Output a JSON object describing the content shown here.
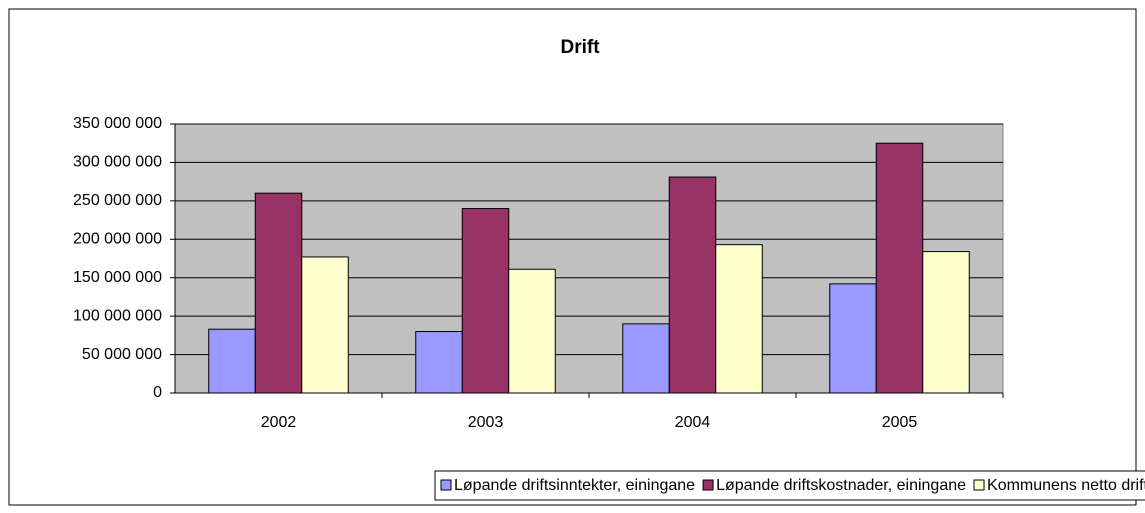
{
  "chart_data": {
    "type": "bar",
    "title": "Drift",
    "categories": [
      "2002",
      "2003",
      "2004",
      "2005"
    ],
    "series": [
      {
        "name": "Løpande driftsinntekter, einingane",
        "color": "#9999ff",
        "values": [
          83000000,
          80000000,
          90000000,
          142000000
        ]
      },
      {
        "name": "Løpande driftskostnader, einingane",
        "color": "#993366",
        "values": [
          260000000,
          240000000,
          281000000,
          325000000
        ]
      },
      {
        "name": "Kommunens netto driftskostnader",
        "color": "#ffffcc",
        "values": [
          177000000,
          161000000,
          193000000,
          184000000
        ]
      }
    ],
    "ylim": [
      0,
      350000000
    ],
    "yticks": [
      0,
      {
        "value": 50000000,
        "label": "50 000 000"
      },
      {
        "value": 100000000,
        "label": "100 000 000"
      },
      {
        "value": 150000000,
        "label": "150 000 000"
      },
      {
        "value": 200000000,
        "label": "200 000 000"
      },
      {
        "value": 250000000,
        "label": "250 000 000"
      },
      {
        "value": 300000000,
        "label": "300 000 000"
      },
      {
        "value": 350000000,
        "label": "350 000 000"
      }
    ],
    "grid": true,
    "legend": "bottom"
  }
}
